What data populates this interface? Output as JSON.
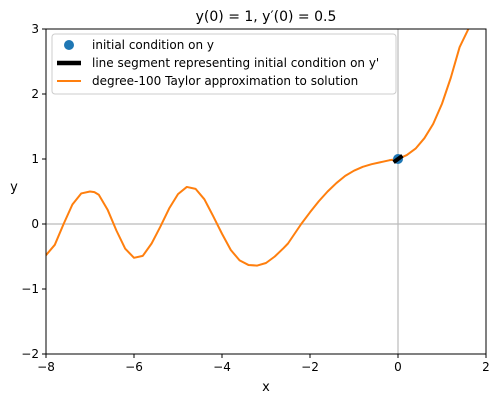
{
  "chart_data": {
    "type": "line",
    "title": "y(0) = 1, y′(0) = 0.5",
    "xlabel": "x",
    "ylabel": "y",
    "xlim": [
      -8,
      2
    ],
    "ylim": [
      -2,
      3
    ],
    "x_ticks": [
      "−8",
      "−6",
      "−4",
      "−2",
      "0",
      "2"
    ],
    "x_tick_values": [
      -8,
      -6,
      -4,
      -2,
      0,
      2
    ],
    "y_ticks": [
      "−2",
      "−1",
      "0",
      "1",
      "2",
      "3"
    ],
    "y_tick_values": [
      -2,
      -1,
      0,
      1,
      2,
      3
    ],
    "reference_lines": {
      "x": 0,
      "y": 0,
      "color": "#bbbbbb"
    },
    "legend": {
      "placement": "top-left",
      "entries": [
        "initial condition on y",
        "line segment representing initial condition on y'",
        "degree-100 Taylor approximation to solution"
      ]
    },
    "initial_point": {
      "x": 0,
      "y": 1,
      "color": "#1f77b4"
    },
    "slope_segment": {
      "x": [
        -0.1,
        0.1
      ],
      "y": [
        0.95,
        1.05
      ],
      "color": "#000000"
    },
    "series": [
      {
        "name": "degree-100 Taylor approximation to solution",
        "color": "#ff7f0e",
        "x": [
          -8.0,
          -7.8,
          -7.6,
          -7.4,
          -7.2,
          -7.0,
          -6.9,
          -6.8,
          -6.6,
          -6.4,
          -6.2,
          -6.0,
          -5.8,
          -5.6,
          -5.5,
          -5.4,
          -5.2,
          -5.0,
          -4.8,
          -4.6,
          -4.4,
          -4.3,
          -4.2,
          -4.0,
          -3.8,
          -3.6,
          -3.4,
          -3.2,
          -3.0,
          -2.8,
          -2.6,
          -2.5,
          -2.4,
          -2.2,
          -2.0,
          -1.8,
          -1.6,
          -1.4,
          -1.2,
          -1.0,
          -0.8,
          -0.6,
          -0.4,
          -0.2,
          0.0,
          0.2,
          0.4,
          0.6,
          0.8,
          1.0,
          1.2,
          1.4,
          1.6,
          1.65
        ],
        "y": [
          -0.48,
          -0.32,
          0.0,
          0.3,
          0.47,
          0.5,
          0.49,
          0.45,
          0.22,
          -0.1,
          -0.38,
          -0.52,
          -0.49,
          -0.3,
          -0.17,
          -0.04,
          0.24,
          0.46,
          0.57,
          0.54,
          0.38,
          0.25,
          0.12,
          -0.15,
          -0.4,
          -0.56,
          -0.63,
          -0.64,
          -0.6,
          -0.5,
          -0.37,
          -0.3,
          -0.2,
          0.0,
          0.18,
          0.35,
          0.5,
          0.63,
          0.74,
          0.82,
          0.88,
          0.92,
          0.95,
          0.98,
          1.0,
          1.06,
          1.16,
          1.32,
          1.54,
          1.85,
          2.25,
          2.72,
          3.0,
          3.05
        ]
      }
    ]
  }
}
